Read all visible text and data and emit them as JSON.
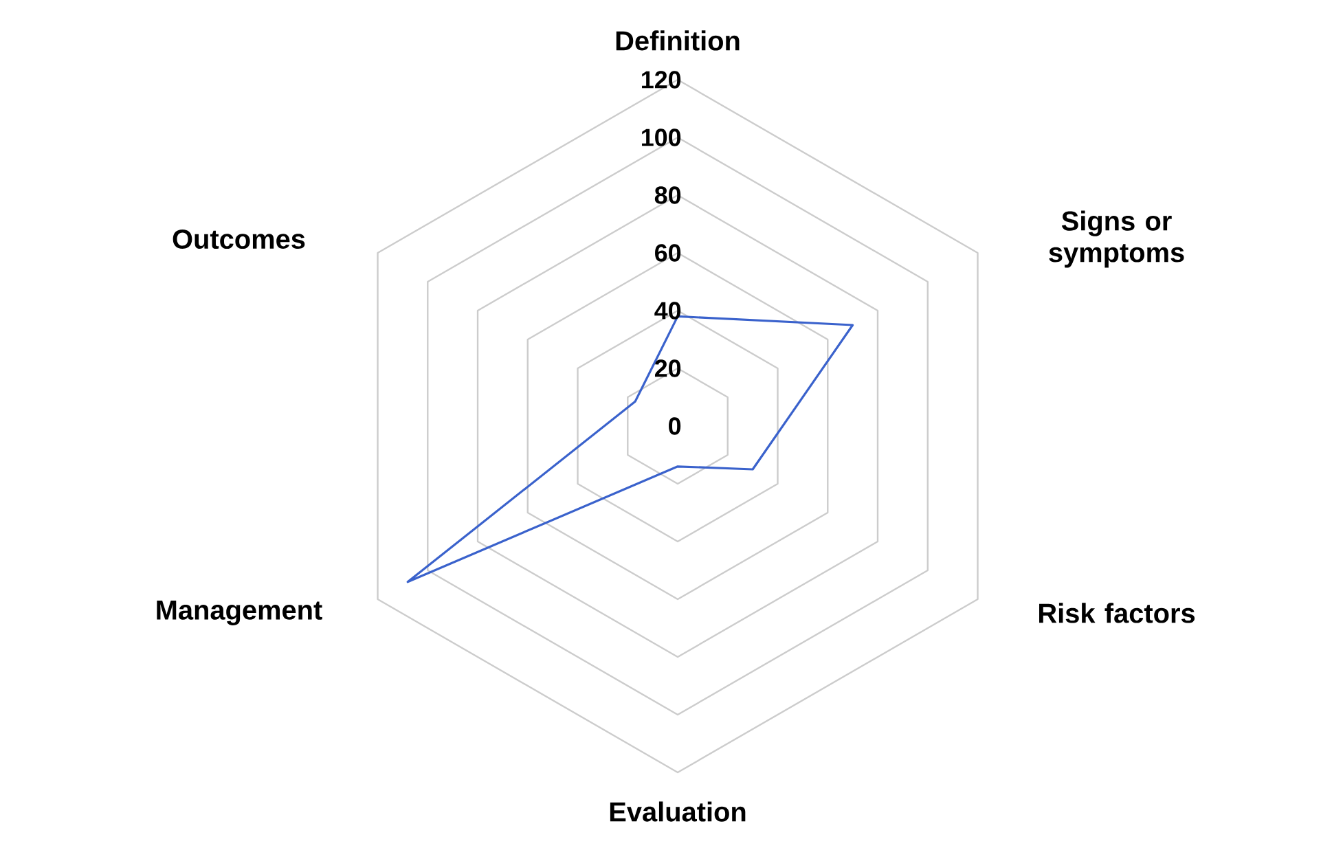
{
  "chart_data": {
    "type": "radar",
    "categories": [
      "Definition",
      "Signs or symptoms",
      "Risk factors",
      "Evaluation",
      "Management",
      "Outcomes"
    ],
    "series": [
      {
        "color": "#3a62cc",
        "values": [
          38,
          70,
          30,
          14,
          108,
          17
        ]
      }
    ],
    "ylim": [
      0,
      120
    ],
    "yticks": [
      0,
      20,
      40,
      60,
      80,
      100,
      120
    ],
    "grid": true,
    "marker": "none"
  }
}
